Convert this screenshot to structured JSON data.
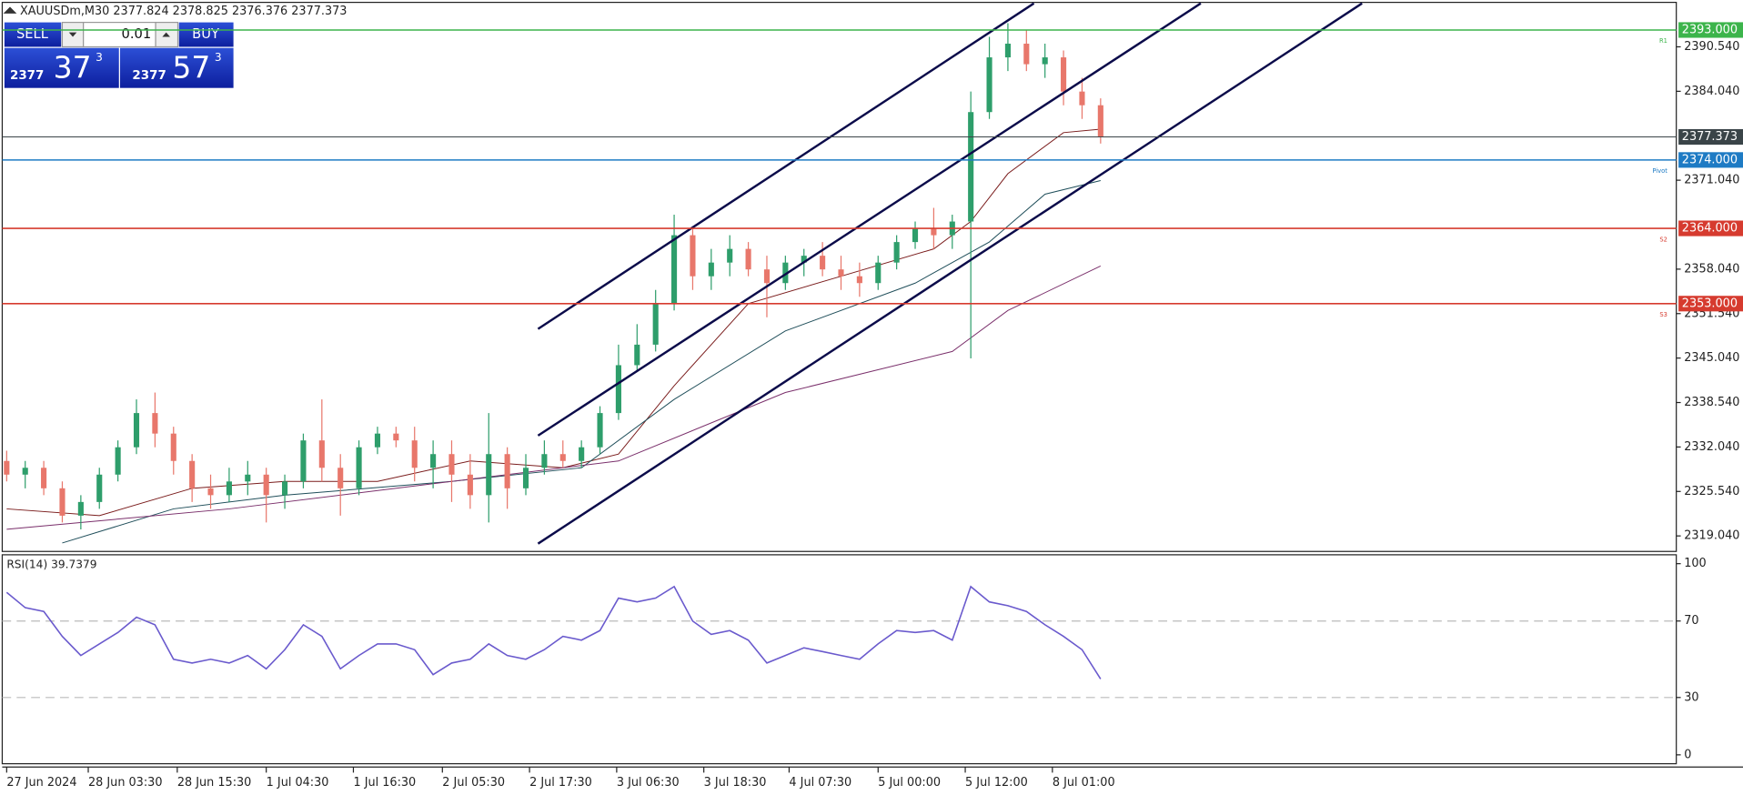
{
  "chart_data": {
    "type": "candlestick",
    "title": "XAUUSDm,M30  2377.824 2378.825 2376.376 2377.373",
    "bull_color": "#2e9e6b",
    "bear_color": "#e8776b",
    "candles": [
      [
        2330,
        2331.5,
        2327,
        2328
      ],
      [
        2328,
        2330,
        2326,
        2329
      ],
      [
        2329,
        2330,
        2325,
        2326
      ],
      [
        2326,
        2327,
        2321,
        2322
      ],
      [
        2322,
        2325,
        2320,
        2324
      ],
      [
        2324,
        2329,
        2323,
        2328
      ],
      [
        2328,
        2333,
        2327,
        2332
      ],
      [
        2332,
        2339,
        2331,
        2337
      ],
      [
        2337,
        2340,
        2332,
        2334
      ],
      [
        2334,
        2335,
        2328,
        2330
      ],
      [
        2330,
        2331,
        2324,
        2326
      ],
      [
        2326,
        2328,
        2323,
        2325
      ],
      [
        2325,
        2329,
        2324,
        2327
      ],
      [
        2327,
        2330,
        2325,
        2328
      ],
      [
        2328,
        2329,
        2321,
        2325
      ],
      [
        2325,
        2328,
        2323,
        2327
      ],
      [
        2327,
        2334,
        2326,
        2333
      ],
      [
        2333,
        2339,
        2327,
        2329
      ],
      [
        2329,
        2331,
        2322,
        2326
      ],
      [
        2326,
        2333,
        2325,
        2332
      ],
      [
        2332,
        2335,
        2331,
        2334
      ],
      [
        2334,
        2335,
        2332,
        2333
      ],
      [
        2333,
        2335,
        2327,
        2329
      ],
      [
        2329,
        2333,
        2326,
        2331
      ],
      [
        2331,
        2333,
        2324,
        2328
      ],
      [
        2328,
        2331,
        2323,
        2325
      ],
      [
        2325,
        2337,
        2321,
        2331
      ],
      [
        2331,
        2332,
        2323,
        2326
      ],
      [
        2326,
        2331,
        2325,
        2329
      ],
      [
        2329,
        2333,
        2328,
        2331
      ],
      [
        2331,
        2333,
        2329,
        2330
      ],
      [
        2330,
        2333,
        2329,
        2332
      ],
      [
        2332,
        2338,
        2331,
        2337
      ],
      [
        2337,
        2347,
        2336,
        2344
      ],
      [
        2344,
        2350,
        2343,
        2347
      ],
      [
        2347,
        2355,
        2346,
        2353
      ],
      [
        2353,
        2366,
        2352,
        2363
      ],
      [
        2363,
        2364,
        2355,
        2357
      ],
      [
        2357,
        2361,
        2355,
        2359
      ],
      [
        2359,
        2363,
        2357,
        2361
      ],
      [
        2361,
        2362,
        2357,
        2358
      ],
      [
        2358,
        2360,
        2351,
        2356
      ],
      [
        2356,
        2360,
        2355,
        2359
      ],
      [
        2359,
        2361,
        2357,
        2360
      ],
      [
        2360,
        2362,
        2357,
        2358
      ],
      [
        2358,
        2360,
        2355,
        2357
      ],
      [
        2357,
        2359,
        2354,
        2356
      ],
      [
        2356,
        2360,
        2355,
        2359
      ],
      [
        2359,
        2363,
        2358,
        2362
      ],
      [
        2362,
        2365,
        2361,
        2364
      ],
      [
        2364,
        2367,
        2361,
        2363
      ],
      [
        2363,
        2366,
        2361,
        2365
      ],
      [
        2365,
        2384,
        2345,
        2381
      ],
      [
        2381,
        2392,
        2380,
        2389
      ],
      [
        2389,
        2394,
        2387,
        2391
      ],
      [
        2391,
        2393,
        2387,
        2388
      ],
      [
        2388,
        2391,
        2386,
        2389
      ],
      [
        2389,
        2390,
        2382,
        2384
      ],
      [
        2384,
        2386,
        2380,
        2382
      ],
      [
        2382,
        2383,
        2376.4,
        2377.4
      ]
    ],
    "xlim": [
      -0.24,
      90.05
    ],
    "xticks": [
      {
        "value": 0,
        "label": "27 Jun 2024"
      },
      {
        "value": 4.4,
        "label": "28 Jun 03:30"
      },
      {
        "value": 9.2,
        "label": "28 Jun 15:30"
      },
      {
        "value": 14,
        "label": "1 Jul 04:30"
      },
      {
        "value": 18.7,
        "label": "1 Jul 16:30"
      },
      {
        "value": 23.5,
        "label": "2 Jul 05:30"
      },
      {
        "value": 28.2,
        "label": "2 Jul 17:30"
      },
      {
        "value": 32.9,
        "label": "3 Jul 06:30"
      },
      {
        "value": 37.6,
        "label": "3 Jul 18:30"
      },
      {
        "value": 42.2,
        "label": "4 Jul 07:30"
      },
      {
        "value": 47,
        "label": "5 Jul 00:00"
      },
      {
        "value": 51.7,
        "label": "5 Jul 12:00"
      },
      {
        "value": 56.4,
        "label": "8 Jul 01:00"
      }
    ],
    "ylim": [
      2316.77,
      2397.04
    ],
    "yticks": [
      {
        "value": 2319.04,
        "label": "2319.040"
      },
      {
        "value": 2325.54,
        "label": "2325.540"
      },
      {
        "value": 2332.04,
        "label": "2332.040"
      },
      {
        "value": 2338.54,
        "label": "2338.540"
      },
      {
        "value": 2345.04,
        "label": "2345.040"
      },
      {
        "value": 2351.54,
        "label": "2351.540"
      },
      {
        "value": 2358.04,
        "label": "2358.040"
      },
      {
        "value": 2371.04,
        "label": "2371.040"
      },
      {
        "value": 2384.04,
        "label": "2384.040"
      },
      {
        "value": 2390.54,
        "label": "2390.540"
      }
    ],
    "series": [
      {
        "color": "#7a1c1c",
        "x": [
          0,
          5,
          10,
          15,
          20,
          25,
          30,
          33,
          36,
          40,
          45,
          50,
          52,
          54,
          57,
          59
        ],
        "values": [
          2323,
          2322,
          2326,
          2327,
          2327,
          2330,
          2329,
          2331,
          2341,
          2353,
          2357,
          2361,
          2365,
          2372,
          2378,
          2378.5
        ]
      },
      {
        "color": "#1f4e5a",
        "x": [
          3,
          9,
          15,
          24,
          31,
          36,
          42,
          49,
          53,
          56,
          59
        ],
        "values": [
          2318,
          2323,
          2325,
          2327,
          2329,
          2339,
          2349,
          2356,
          2362,
          2369,
          2371
        ]
      },
      {
        "color": "#7a2f6b",
        "x": [
          0,
          12,
          24,
          33,
          42,
          51,
          54,
          59
        ],
        "values": [
          2320,
          2323,
          2327,
          2330,
          2340,
          2346,
          2352,
          2358.5
        ]
      }
    ],
    "trendlines": [
      {
        "color": "#0b0b4a",
        "x": [
          28.66,
          55.4
        ],
        "values": [
          2349.3,
          2396.9
        ]
      },
      {
        "color": "#0b0b4a",
        "x": [
          28.66,
          64.4
        ],
        "values": [
          2333.7,
          2396.9
        ]
      },
      {
        "color": "#0b0b4a",
        "x": [
          28.66,
          73.1
        ],
        "values": [
          2317.9,
          2396.9
        ]
      }
    ],
    "levels": [
      {
        "value": 2393,
        "label": "2393.000",
        "color": "#3cb44b",
        "tag": "R1"
      },
      {
        "value": 2377.373,
        "label": "2377.373",
        "color": "#3a4448"
      },
      {
        "value": 2374,
        "label": "2374.000",
        "color": "#1e7bc4",
        "tag": "Pivot"
      },
      {
        "value": 2364,
        "label": "2364.000",
        "color": "#d63b2f",
        "tag": "S2"
      },
      {
        "value": 2353,
        "label": "2353.000",
        "color": "#d63b2f",
        "tag": "S3"
      }
    ],
    "rsi": {
      "title": "RSI(14) 39.7379",
      "color": "#6a5acd",
      "ylim": [
        -4.65,
        104.65
      ],
      "yticks": [
        0,
        30,
        70,
        100
      ],
      "levels": [
        30,
        70
      ],
      "values": [
        85,
        77,
        75,
        62,
        52,
        58,
        64,
        72,
        68,
        50,
        48,
        50,
        48,
        52,
        45,
        55,
        68,
        62,
        45,
        52,
        58,
        58,
        55,
        42,
        48,
        50,
        58,
        52,
        50,
        55,
        62,
        60,
        65,
        82,
        80,
        82,
        88,
        70,
        63,
        65,
        60,
        48,
        52,
        56,
        54,
        52,
        50,
        58,
        65,
        64,
        65,
        60,
        88,
        80,
        78,
        75,
        68,
        62,
        55,
        39.7379
      ]
    }
  },
  "trade": {
    "sell_label": "SELL",
    "buy_label": "BUY",
    "volume": "0.01",
    "sell": [
      "2377",
      "37",
      "3"
    ],
    "buy": [
      "2377",
      "57",
      "3"
    ]
  }
}
